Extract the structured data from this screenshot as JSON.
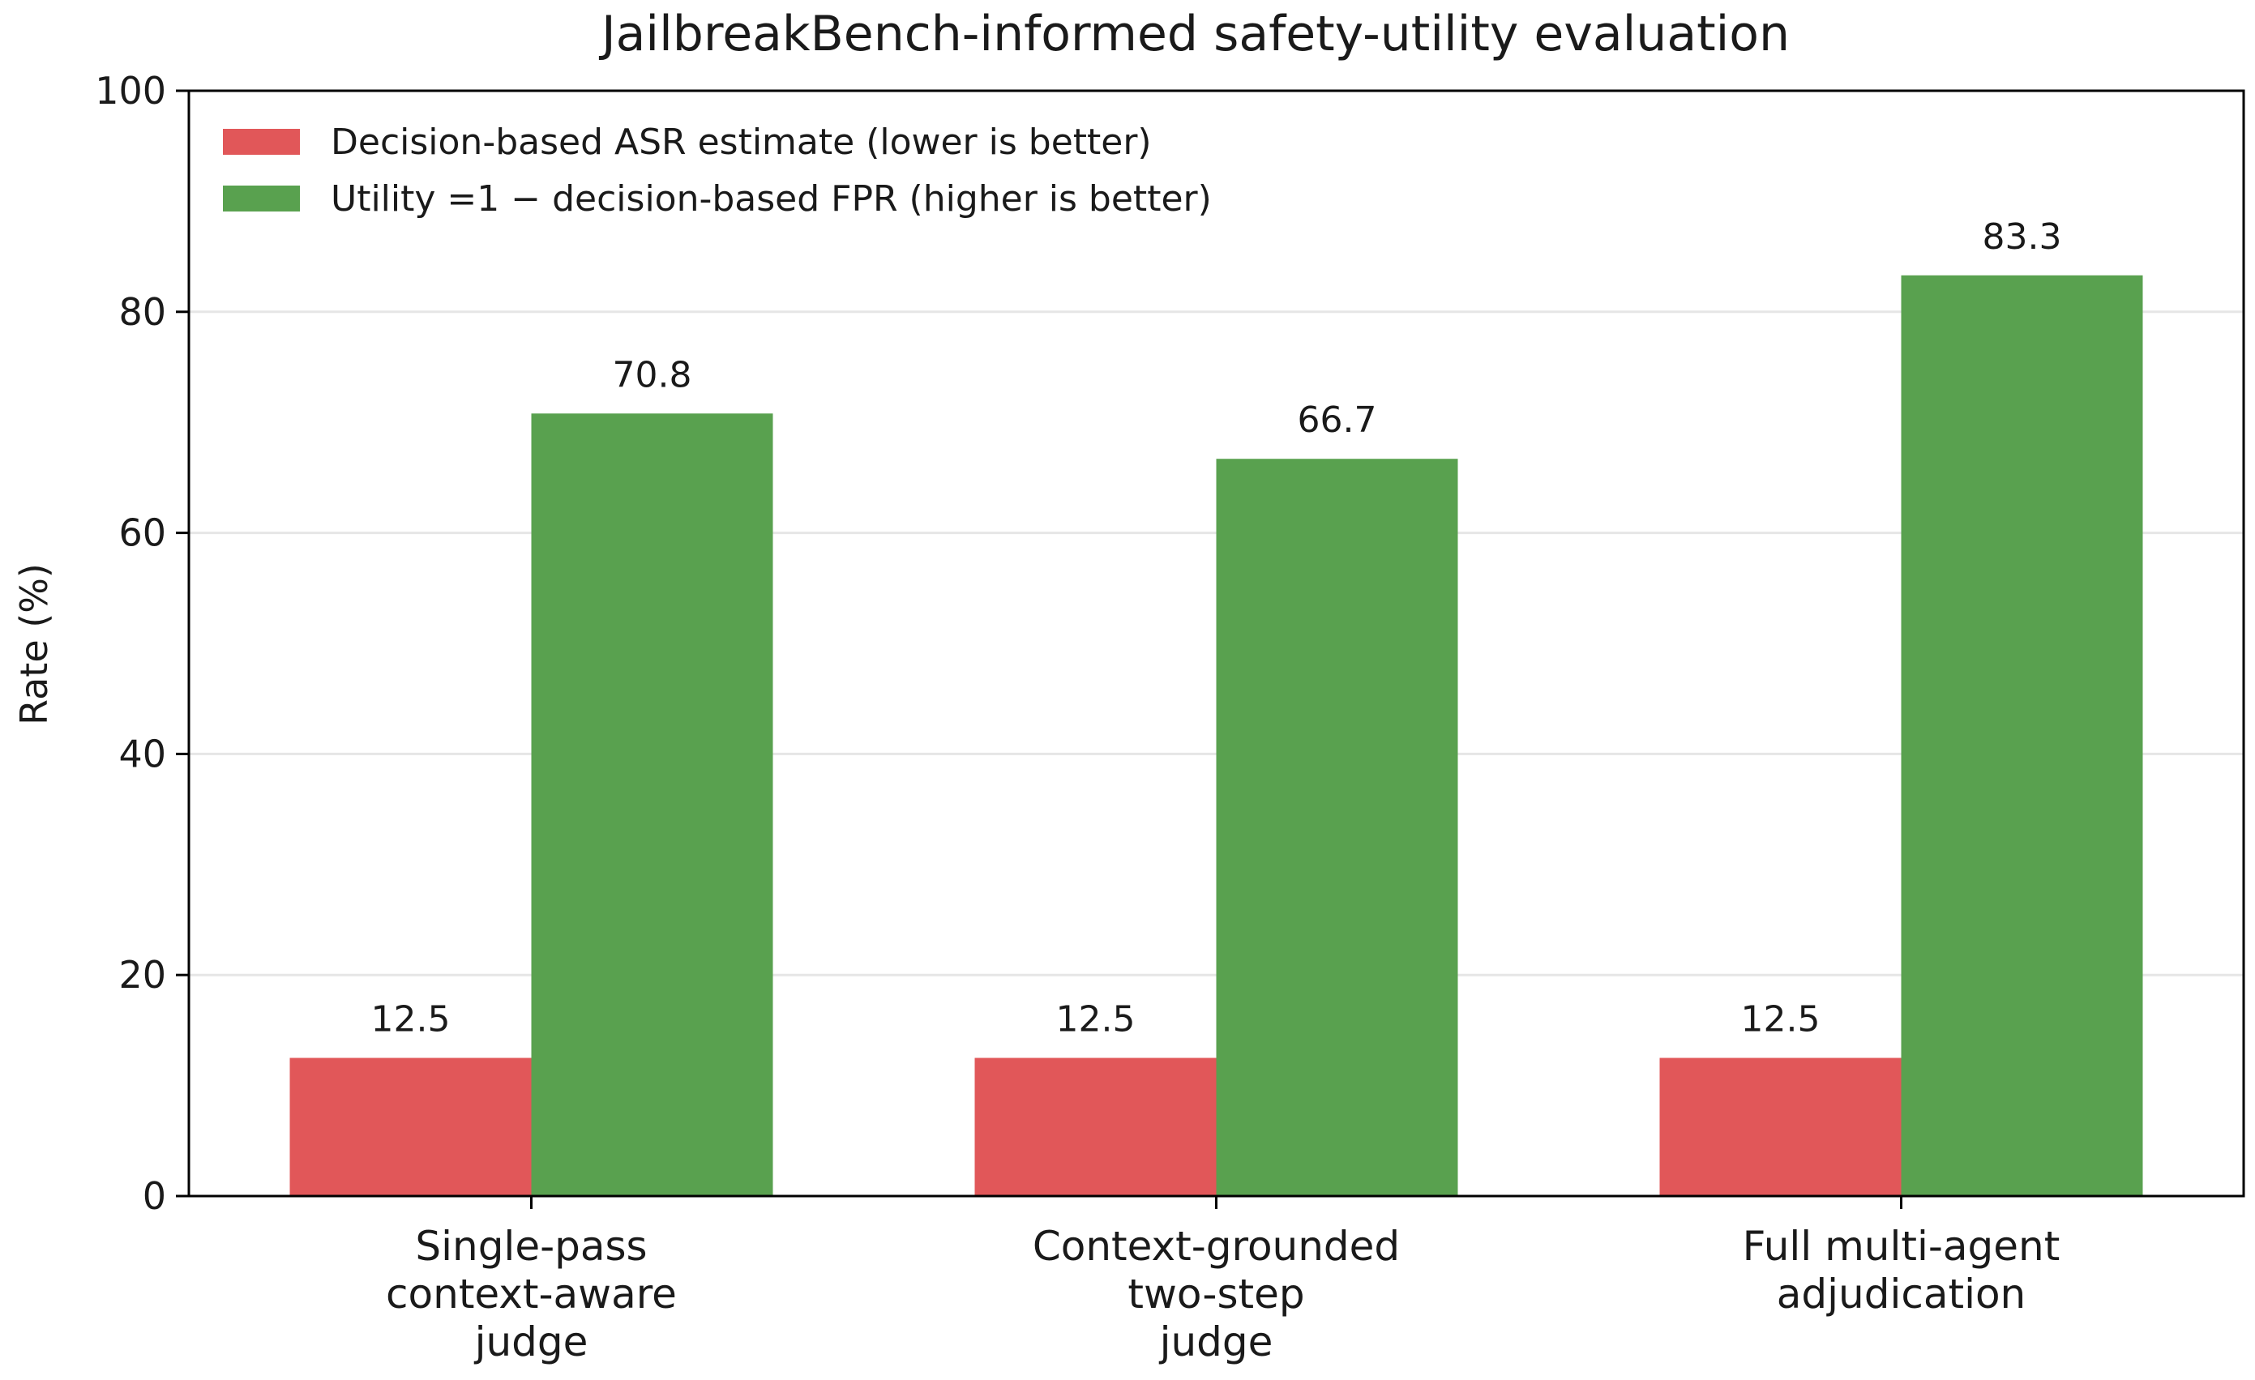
{
  "chart_data": {
    "type": "bar",
    "title": "JailbreakBench-informed safety-utility evaluation",
    "xlabel": "",
    "ylabel": "Rate (%)",
    "ylim": [
      0,
      100
    ],
    "yticks": [
      0,
      20,
      40,
      60,
      80,
      100
    ],
    "grid": "horizontal",
    "legend_position": "top-left",
    "categories": [
      [
        "Single-pass",
        "context-aware",
        "judge"
      ],
      [
        "Context-grounded",
        "two-step",
        "judge"
      ],
      [
        "Full multi-agent",
        "adjudication"
      ]
    ],
    "series": [
      {
        "name": "Decision-based ASR estimate (lower is better)",
        "color": "#e15759",
        "values": [
          12.5,
          12.5,
          12.5
        ],
        "labels": [
          "12.5",
          "12.5",
          "12.5"
        ]
      },
      {
        "name": "Utility =1 − decision-based FPR (higher is better)",
        "color": "#59a14f",
        "values": [
          70.8,
          66.7,
          83.3
        ],
        "labels": [
          "70.8",
          "66.7",
          "83.3"
        ]
      }
    ]
  }
}
